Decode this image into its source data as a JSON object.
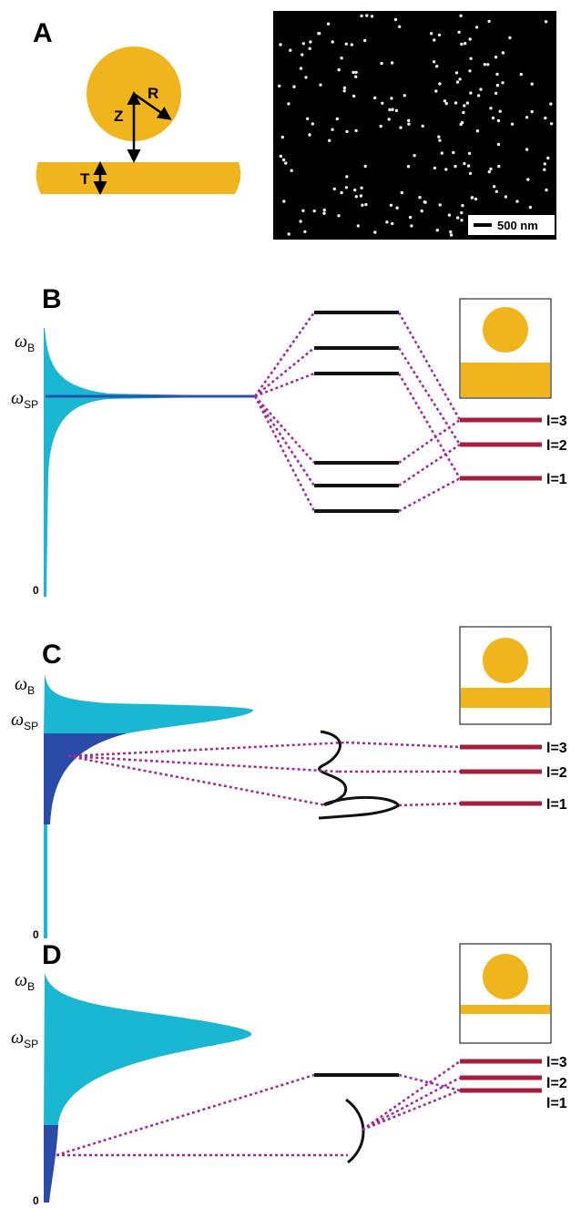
{
  "panel_a": {
    "label": "A",
    "radius_label": "R",
    "gap_label": "Z",
    "thickness_label": "T",
    "scale_bar": "500 nm"
  },
  "panels": [
    {
      "label": "B",
      "top_level": {
        "symbol": "ω",
        "subscript": "B"
      },
      "sp_level": {
        "symbol": "ω",
        "subscript": "SP"
      },
      "zero": "0",
      "modes": [
        "l=3",
        "l=2",
        "l=1"
      ]
    },
    {
      "label": "C",
      "top_level": {
        "symbol": "ω",
        "subscript": "B"
      },
      "sp_level": {
        "symbol": "ω",
        "subscript": "SP"
      },
      "zero": "0",
      "modes": [
        "l=3",
        "l=2",
        "l=1"
      ]
    },
    {
      "label": "D",
      "top_level": {
        "symbol": "ω",
        "subscript": "B"
      },
      "sp_level": {
        "symbol": "ω",
        "subscript": "SP"
      },
      "zero": "0",
      "modes": [
        "l=3",
        "l=2",
        "l=1"
      ]
    }
  ]
}
